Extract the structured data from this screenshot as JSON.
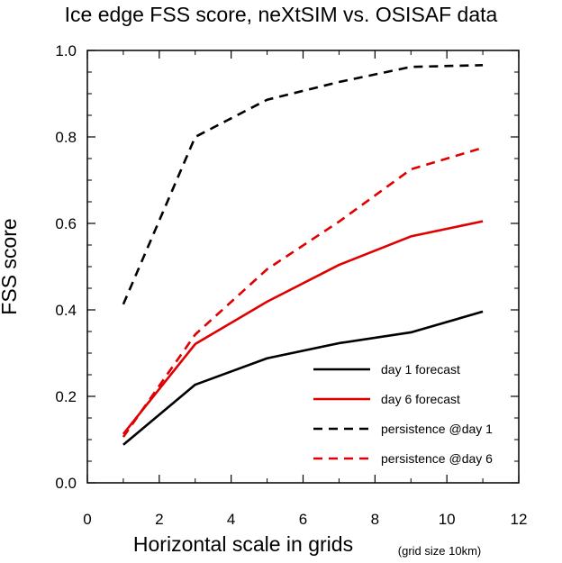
{
  "chart_data": {
    "type": "line",
    "title": "Ice edge FSS score, neXtSIM vs. OSISAF data",
    "xlabel": "Horizontal scale in grids",
    "xlabel_note": "(grid size 10km)",
    "ylabel": "FSS score",
    "xlim": [
      0,
      12
    ],
    "ylim": [
      0,
      1.0
    ],
    "x_ticks": [
      0,
      2,
      4,
      6,
      8,
      10,
      12
    ],
    "x_tick_labels": [
      "0",
      "2",
      "4",
      "6",
      "8",
      "10",
      "12"
    ],
    "y_ticks": [
      0,
      0.2,
      0.4,
      0.6,
      0.8,
      1.0
    ],
    "y_tick_labels": [
      "0.0",
      "0.2",
      "0.4",
      "0.6",
      "0.8",
      "1.0"
    ],
    "grid": false,
    "legend_position": "bottom-right",
    "x": [
      1,
      3,
      5,
      7,
      9,
      11
    ],
    "series": [
      {
        "name": "day 1 forecast",
        "color": "#000000",
        "dash": "solid",
        "values": [
          0.088,
          0.227,
          0.288,
          0.323,
          0.348,
          0.396
        ]
      },
      {
        "name": "day 6 forecast",
        "color": "#e00000",
        "dash": "solid",
        "values": [
          0.113,
          0.321,
          0.419,
          0.504,
          0.57,
          0.605
        ]
      },
      {
        "name": "persistence @day 1",
        "color": "#000000",
        "dash": "dashed",
        "values": [
          0.413,
          0.8,
          0.886,
          0.927,
          0.962,
          0.966
        ]
      },
      {
        "name": "persistence @day 6",
        "color": "#e00000",
        "dash": "dashed",
        "values": [
          0.106,
          0.343,
          0.494,
          0.604,
          0.725,
          0.775
        ]
      }
    ]
  }
}
